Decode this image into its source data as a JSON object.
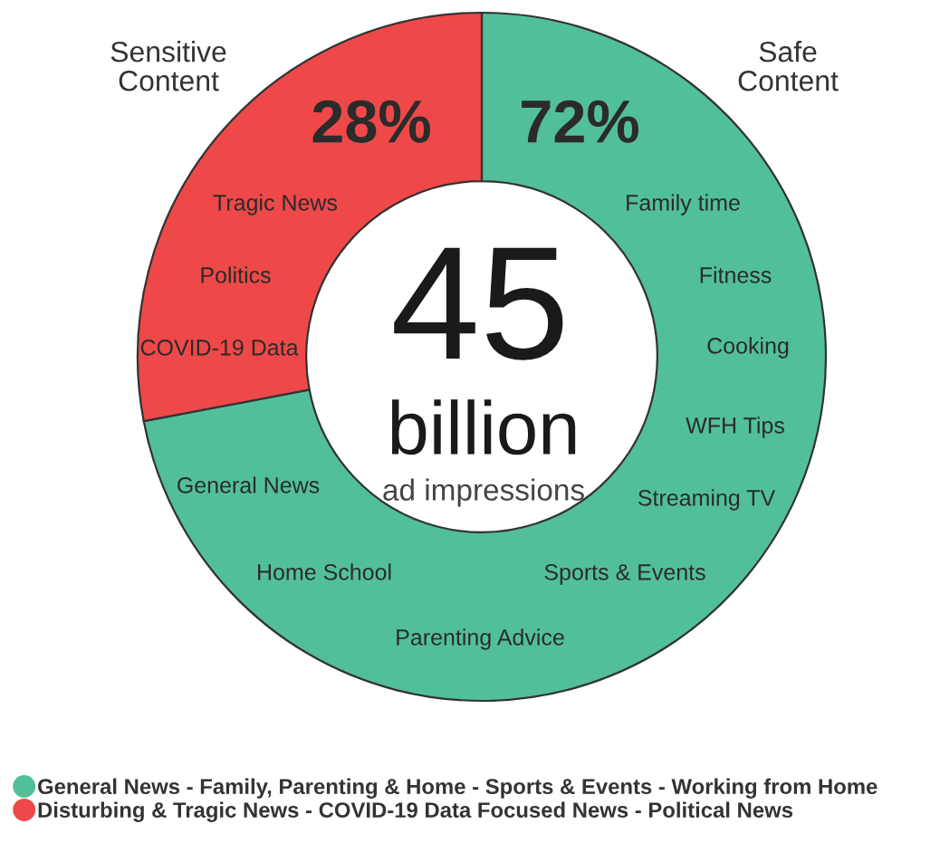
{
  "chart_data": {
    "type": "donut",
    "categories": [
      "General News - Family, Parenting & Home - Sports & Events - Working from Home",
      "Disturbing & Tragic News - COVID-19 Data Focused News - Political News"
    ],
    "values": [
      72,
      28
    ],
    "colors": [
      "#52bf9b",
      "#ef4848"
    ],
    "value_labels": [
      "72%",
      "28%"
    ],
    "legend": "bottom left",
    "annotations": [
      "Safe\nContent",
      "Sensitive\nContent",
      "Family time",
      "Fitness",
      "Cooking",
      "WFH Tips",
      "Streaming TV",
      "Sports & Events",
      "Parenting Advice",
      "Home School",
      "General News",
      "COVID-19 Data",
      "Politics",
      "Tragic News",
      "45",
      "billion",
      "ad impressions"
    ]
  }
}
